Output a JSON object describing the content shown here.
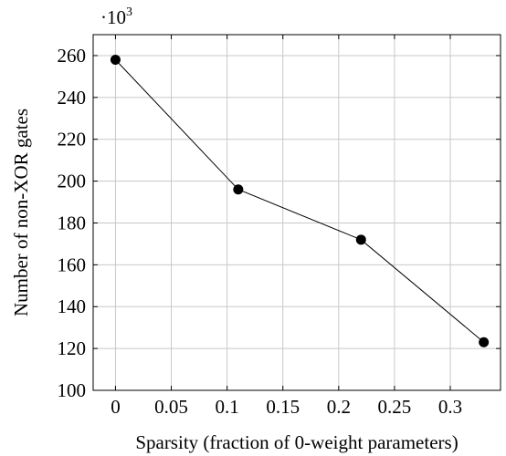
{
  "chart_data": {
    "type": "line",
    "title": "",
    "xlabel": "Sparsity (fraction of 0-weight parameters)",
    "ylabel": "Number of non-XOR gates",
    "y_multiplier_base": "·10",
    "y_multiplier_exp": "3",
    "xlim": [
      -0.02,
      0.345
    ],
    "ylim": [
      100,
      270
    ],
    "xticks": [
      0,
      0.05,
      0.1,
      0.15,
      0.2,
      0.25,
      0.3
    ],
    "xtick_labels": [
      "0",
      "0.05",
      "0.1",
      "0.15",
      "0.2",
      "0.25",
      "0.3"
    ],
    "yticks": [
      100,
      120,
      140,
      160,
      180,
      200,
      220,
      240,
      260
    ],
    "ytick_labels": [
      "100",
      "120",
      "140",
      "160",
      "180",
      "200",
      "220",
      "240",
      "260"
    ],
    "grid": true,
    "series": [
      {
        "x": [
          0,
          0.11,
          0.22,
          0.33
        ],
        "y": [
          258,
          196,
          172,
          123
        ],
        "color": "#000000",
        "marker": "circle"
      }
    ]
  }
}
